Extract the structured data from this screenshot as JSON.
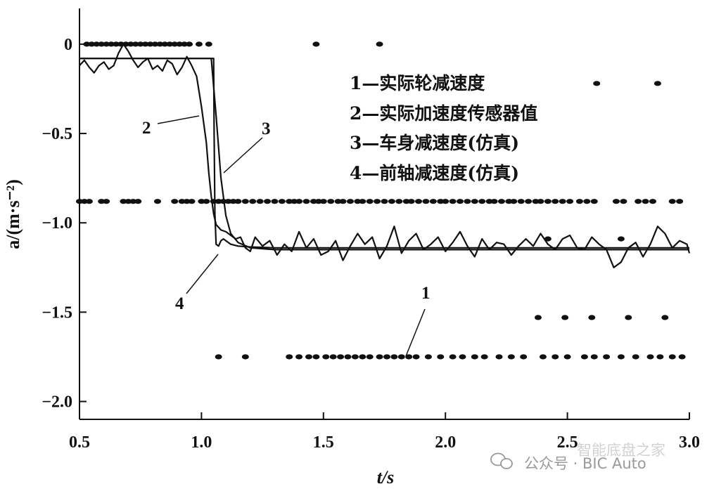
{
  "chart_data": {
    "type": "line",
    "xlabel": "t/s",
    "ylabel": "a/(m·s⁻²)",
    "xlim": [
      0.5,
      3.0
    ],
    "ylim": [
      -2.1,
      0.2
    ],
    "x_ticks": [
      "0.5",
      "1.0",
      "1.5",
      "2.0",
      "2.5",
      "3.0"
    ],
    "y_ticks": [
      "0",
      "−0.5",
      "−1.0",
      "−1.5",
      "−2.0"
    ],
    "grid": false,
    "legend_position": "top-right",
    "legend": [
      "1—实际轮减速度",
      "2—实际加速度传感器值",
      "3—车身减速度(仿真)",
      "4—前轴减速度(仿真)"
    ],
    "curve_labels": [
      "1",
      "2",
      "3",
      "4"
    ],
    "series": [
      {
        "name": "1—实际轮减速度",
        "style": "dots",
        "bands": [
          {
            "y": 0.0,
            "x": [
              0.53,
              0.55,
              0.57,
              0.59,
              0.61,
              0.63,
              0.65,
              0.67,
              0.69,
              0.71,
              0.73,
              0.75,
              0.77,
              0.79,
              0.81,
              0.83,
              0.85,
              0.87,
              0.89,
              0.91,
              0.93,
              0.95,
              0.99,
              1.03,
              1.47,
              1.73
            ]
          },
          {
            "y": -0.22,
            "x": [
              2.62,
              2.87
            ]
          },
          {
            "y": -0.88,
            "x": [
              0.5,
              0.52,
              0.54,
              0.59,
              0.61,
              0.68,
              0.7,
              0.72,
              0.74,
              0.82,
              0.89,
              0.92,
              0.94,
              0.96,
              1.0,
              1.02,
              1.05,
              1.07,
              1.09,
              1.11,
              1.13,
              1.15,
              1.18,
              1.21,
              1.24,
              1.27,
              1.3,
              1.33,
              1.36,
              1.38,
              1.4,
              1.43,
              1.46,
              1.48,
              1.5,
              1.53,
              1.56,
              1.58,
              1.61,
              1.64,
              1.66,
              1.69,
              1.72,
              1.75,
              1.78,
              1.81,
              1.84,
              1.86,
              1.89,
              1.92,
              1.95,
              1.98,
              2.0,
              2.03,
              2.06,
              2.09,
              2.12,
              2.15,
              2.18,
              2.2,
              2.23,
              2.26,
              2.28,
              2.31,
              2.34,
              2.37,
              2.39,
              2.42,
              2.45,
              2.48,
              2.51,
              2.55,
              2.58,
              2.61,
              2.7,
              2.73,
              2.79,
              2.82,
              2.85,
              2.93,
              2.96
            ]
          },
          {
            "y": -1.09,
            "x": [
              2.42,
              2.72
            ]
          },
          {
            "y": -1.53,
            "x": [
              2.38,
              2.49,
              2.6,
              2.75,
              2.9
            ]
          },
          {
            "y": -1.75,
            "x": [
              1.07,
              1.18,
              1.36,
              1.4,
              1.44,
              1.47,
              1.51,
              1.54,
              1.57,
              1.6,
              1.63,
              1.66,
              1.69,
              1.73,
              1.76,
              1.79,
              1.82,
              1.85,
              1.88,
              1.93,
              1.98,
              2.03,
              2.07,
              2.12,
              2.16,
              2.22,
              2.27,
              2.32,
              2.4,
              2.45,
              2.5,
              2.57,
              2.61,
              2.66,
              2.72,
              2.78,
              2.84,
              2.88,
              2.93,
              2.97
            ]
          }
        ]
      },
      {
        "name": "2—实际加速度传感器值",
        "style": "line",
        "x": [
          0.5,
          0.52,
          0.54,
          0.56,
          0.58,
          0.6,
          0.62,
          0.64,
          0.66,
          0.68,
          0.7,
          0.72,
          0.74,
          0.76,
          0.78,
          0.8,
          0.82,
          0.84,
          0.86,
          0.88,
          0.9,
          0.92,
          0.94,
          0.96,
          0.98,
          1.0,
          1.02,
          1.03,
          1.04,
          1.05,
          1.06,
          1.08,
          1.1,
          1.12,
          1.14,
          1.16,
          1.18,
          1.2,
          1.22,
          1.25,
          1.28,
          1.31,
          1.34,
          1.37,
          1.4,
          1.43,
          1.46,
          1.49,
          1.52,
          1.55,
          1.58,
          1.61,
          1.64,
          1.67,
          1.7,
          1.73,
          1.76,
          1.79,
          1.82,
          1.85,
          1.88,
          1.91,
          1.94,
          1.97,
          2.0,
          2.03,
          2.06,
          2.09,
          2.12,
          2.15,
          2.18,
          2.21,
          2.24,
          2.27,
          2.3,
          2.33,
          2.36,
          2.39,
          2.42,
          2.45,
          2.48,
          2.51,
          2.54,
          2.57,
          2.6,
          2.63,
          2.66,
          2.69,
          2.72,
          2.75,
          2.78,
          2.81,
          2.84,
          2.87,
          2.9,
          2.93,
          2.96,
          2.99,
          3.0
        ],
        "y": [
          -0.12,
          -0.09,
          -0.13,
          -0.16,
          -0.12,
          -0.1,
          -0.14,
          -0.12,
          -0.05,
          0.0,
          -0.04,
          -0.09,
          -0.13,
          -0.1,
          -0.08,
          -0.14,
          -0.12,
          -0.15,
          -0.09,
          -0.11,
          -0.17,
          -0.13,
          -0.07,
          -0.12,
          -0.18,
          -0.35,
          -0.55,
          -0.72,
          -0.85,
          -0.95,
          -1.01,
          -1.04,
          -1.05,
          -1.07,
          -1.09,
          -1.08,
          -1.14,
          -1.16,
          -1.08,
          -1.13,
          -1.1,
          -1.18,
          -1.12,
          -1.16,
          -1.05,
          -1.14,
          -1.09,
          -1.18,
          -1.16,
          -1.1,
          -1.21,
          -1.13,
          -1.06,
          -1.12,
          -1.08,
          -1.2,
          -1.13,
          -1.02,
          -1.17,
          -1.1,
          -1.06,
          -1.15,
          -1.12,
          -1.08,
          -1.16,
          -1.11,
          -1.05,
          -1.13,
          -1.19,
          -1.09,
          -1.15,
          -1.11,
          -1.12,
          -1.18,
          -1.13,
          -1.09,
          -1.13,
          -1.06,
          -1.12,
          -1.15,
          -1.09,
          -1.07,
          -1.14,
          -1.15,
          -1.08,
          -1.12,
          -1.15,
          -1.25,
          -1.22,
          -1.14,
          -1.11,
          -1.19,
          -1.12,
          -1.02,
          -1.06,
          -1.14,
          -1.1,
          -1.12,
          -1.17
        ]
      },
      {
        "name": "3—车身减速度(仿真)",
        "style": "line",
        "x": [
          0.5,
          1.04,
          1.06,
          1.08,
          1.1,
          1.12,
          1.15,
          1.2,
          1.3,
          1.4,
          1.6,
          1.8,
          2.0,
          2.5,
          3.0
        ],
        "y": [
          -0.08,
          -0.08,
          -0.4,
          -0.75,
          -0.96,
          -1.06,
          -1.11,
          -1.14,
          -1.15,
          -1.15,
          -1.15,
          -1.15,
          -1.15,
          -1.15,
          -1.15
        ]
      },
      {
        "name": "4—前轴减速度(仿真)",
        "style": "line",
        "x": [
          0.5,
          1.05,
          1.052,
          1.055,
          1.06,
          1.07,
          1.08,
          1.09,
          1.1,
          1.12,
          1.15,
          1.2,
          1.3,
          1.5,
          2.0,
          2.5,
          3.0
        ],
        "y": [
          -0.08,
          -0.08,
          -0.5,
          -0.95,
          -1.12,
          -1.13,
          -1.1,
          -1.09,
          -1.1,
          -1.12,
          -1.13,
          -1.135,
          -1.14,
          -1.14,
          -1.14,
          -1.14,
          -1.14
        ]
      }
    ]
  },
  "watermark": {
    "text": "公众号 · BIC Auto",
    "overlay_text": "智能底盘之家"
  }
}
